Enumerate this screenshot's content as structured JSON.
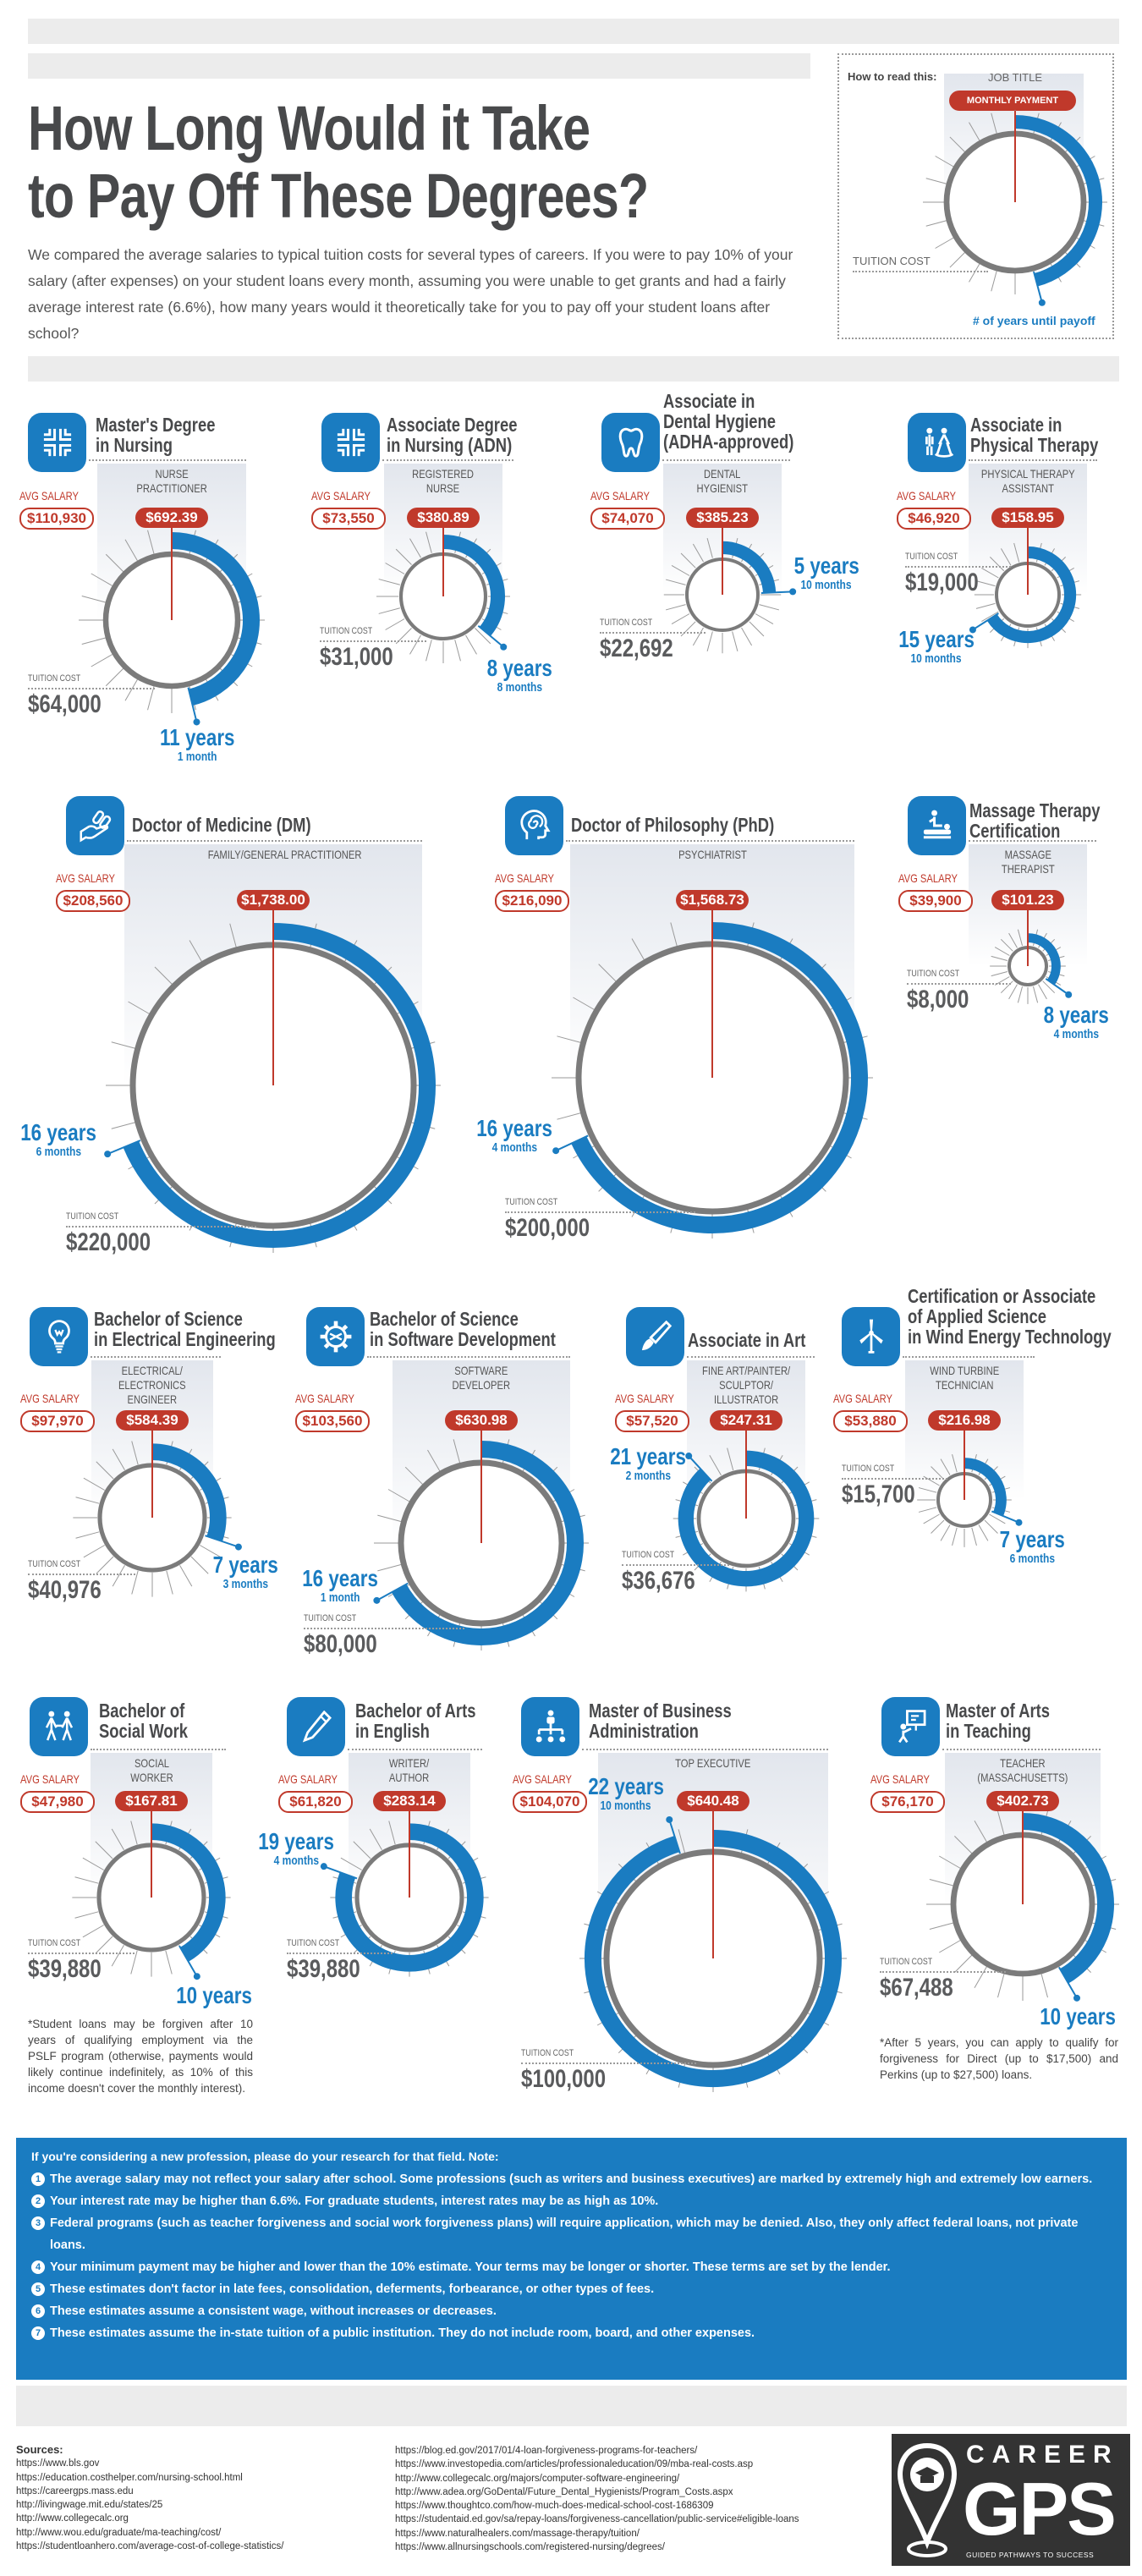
{
  "header": {
    "title_line1": "How Long Would it Take",
    "title_line2": "to Pay Off These Degrees?",
    "intro": "We compared the average salaries to typical tuition costs for several types of careers. If you were to pay 10% of your salary (after expenses) on your student loans every month, assuming you were unable to get grants and had a fairly average interest rate (6.6%), how many years would it theoretically take for you to pay off your student loans after school?"
  },
  "legend": {
    "heading": "How to read this:",
    "job_title": "JOB TITLE",
    "monthly_payment": "MONTHLY PAYMENT",
    "tuition_cost": "TUITION COST",
    "years_until_payoff": "# of years until payoff"
  },
  "labels": {
    "avg_salary": "AVG SALARY",
    "tuition_cost": "TUITION COST"
  },
  "colors": {
    "blue": "#1a7cc1",
    "red": "#c0392b",
    "ring": "#7b7b7b"
  },
  "cards": [
    {
      "icon": "nursing-cross-icon",
      "title": "Master's Degree\nin Nursing",
      "job": "NURSE\nPRACTITIONER",
      "avg_salary": "$110,930",
      "monthly_payment": "$692.39",
      "tuition": "$64,000",
      "tuition_value": 64000,
      "years_label": "11 years",
      "months_label": "1 month",
      "years": 11,
      "months": 1
    },
    {
      "icon": "nursing-cross-icon",
      "title": "Associate Degree\nin Nursing (ADN)",
      "job": "REGISTERED\nNURSE",
      "avg_salary": "$73,550",
      "monthly_payment": "$380.89",
      "tuition": "$31,000",
      "tuition_value": 31000,
      "years_label": "8 years",
      "months_label": "8 months",
      "years": 8,
      "months": 8
    },
    {
      "icon": "tooth-icon",
      "title": "Associate in\nDental Hygiene\n(ADHA-approved)",
      "job": "DENTAL\nHYGIENIST",
      "avg_salary": "$74,070",
      "monthly_payment": "$385.23",
      "tuition": "$22,692",
      "tuition_value": 22692,
      "years_label": "5 years",
      "months_label": "10 months",
      "years": 5,
      "months": 10
    },
    {
      "icon": "physical-therapy-icon",
      "title": "Associate in\nPhysical Therapy",
      "job": "PHYSICAL THERAPY\nASSISTANT",
      "avg_salary": "$46,920",
      "monthly_payment": "$158.95",
      "tuition": "$19,000",
      "tuition_value": 19000,
      "years_label": "15 years",
      "months_label": "10 months",
      "years": 15,
      "months": 10
    },
    {
      "icon": "hand-pills-icon",
      "title": "Doctor of Medicine (DM)",
      "job": "FAMILY/GENERAL PRACTITIONER",
      "avg_salary": "$208,560",
      "monthly_payment": "$1,738.00",
      "tuition": "$220,000",
      "tuition_value": 220000,
      "years_label": "16 years",
      "months_label": "6 months",
      "years": 16,
      "months": 6
    },
    {
      "icon": "head-spiral-icon",
      "title": "Doctor of Philosophy (PhD)",
      "job": "PSYCHIATRIST",
      "avg_salary": "$216,090",
      "monthly_payment": "$1,568.73",
      "tuition": "$200,000",
      "tuition_value": 200000,
      "years_label": "16 years",
      "months_label": "4 months",
      "years": 16,
      "months": 4
    },
    {
      "icon": "massage-icon",
      "title": "Massage Therapy\nCertification",
      "job": "MASSAGE\nTHERAPIST",
      "avg_salary": "$39,900",
      "monthly_payment": "$101.23",
      "tuition": "$8,000",
      "tuition_value": 8000,
      "years_label": "8 years",
      "months_label": "4 months",
      "years": 8,
      "months": 4
    },
    {
      "icon": "lightbulb-icon",
      "title": "Bachelor of Science\nin Electrical Engineering",
      "job": "ELECTRICAL/\nELECTRONICS\nENGINEER",
      "avg_salary": "$97,970",
      "monthly_payment": "$584.39",
      "tuition": "$40,976",
      "tuition_value": 40976,
      "years_label": "7 years",
      "months_label": "3 months",
      "years": 7,
      "months": 3
    },
    {
      "icon": "gear-icon",
      "title": "Bachelor of Science\nin Software Development",
      "job": "SOFTWARE\nDEVELOPER",
      "avg_salary": "$103,560",
      "monthly_payment": "$630.98",
      "tuition": "$80,000",
      "tuition_value": 80000,
      "years_label": "16 years",
      "months_label": "1 month",
      "years": 16,
      "months": 1
    },
    {
      "icon": "paintbrush-icon",
      "title": "Associate in Art",
      "job": "FINE ART/PAINTER/\nSCULPTOR/\nILLUSTRATOR",
      "avg_salary": "$57,520",
      "monthly_payment": "$247.31",
      "tuition": "$36,676",
      "tuition_value": 36676,
      "years_label": "21 years",
      "months_label": "2 months",
      "years": 21,
      "months": 2
    },
    {
      "icon": "wind-turbine-icon",
      "title": "Certification or Associate\nof Applied Science\nin Wind Energy Technology",
      "job": "WIND TURBINE\nTECHNICIAN",
      "avg_salary": "$53,880",
      "monthly_payment": "$216.98",
      "tuition": "$15,700",
      "tuition_value": 15700,
      "years_label": "7 years",
      "months_label": "6 months",
      "years": 7,
      "months": 6
    },
    {
      "icon": "people-icon",
      "title": "Bachelor of\nSocial Work",
      "job": "SOCIAL\nWORKER",
      "avg_salary": "$47,980",
      "monthly_payment": "$167.81",
      "tuition": "$39,880",
      "tuition_value": 39880,
      "years_label": "10 years",
      "months_label": "",
      "years": 10,
      "months": 0,
      "note": "*Student loans may be forgiven after 10 years of qualifying employment via the PSLF program (otherwise, payments would likely continue indefinitely, as 10% of this income doesn't cover the monthly interest)."
    },
    {
      "icon": "pen-icon",
      "title": "Bachelor of Arts\nin English",
      "job": "WRITER/\nAUTHOR",
      "avg_salary": "$61,820",
      "monthly_payment": "$283.14",
      "tuition": "$39,880",
      "tuition_value": 39880,
      "years_label": "19 years",
      "months_label": "4 months",
      "years": 19,
      "months": 4
    },
    {
      "icon": "org-chart-icon",
      "title": "Master of Business\nAdministration",
      "job": "TOP EXECUTIVE",
      "avg_salary": "$104,070",
      "monthly_payment": "$640.48",
      "tuition": "$100,000",
      "tuition_value": 100000,
      "years_label": "22 years",
      "months_label": "10 months",
      "years": 22,
      "months": 10
    },
    {
      "icon": "teacher-board-icon",
      "title": "Master of Arts\nin Teaching",
      "job": "TEACHER\n(MASSACHUSETTS)",
      "avg_salary": "$76,170",
      "monthly_payment": "$402.73",
      "tuition": "$67,488",
      "tuition_value": 67488,
      "years_label": "10 years",
      "months_label": "",
      "years": 10,
      "months": 0,
      "note": "*After 5 years, you can apply to qualify for forgiveness for Direct (up to $17,500) and Perkins (up to $27,500) loans."
    }
  ],
  "notes": {
    "heading": "If you're considering a new profession, please do your research for that field. Note:",
    "items": [
      "The average salary may not reflect your salary after school. Some professions (such as writers and business executives) are marked by extremely high and extremely low earners.",
      "Your interest rate may be higher than 6.6%. For graduate students, interest rates may be as high as 10%.",
      "Federal programs (such as teacher forgiveness and social work forgiveness plans) will require application, which may be denied. Also, they only affect federal loans, not private loans.",
      "Your minimum payment may be higher and lower than the 10% estimate. Your terms may be longer or shorter. These terms are set by the lender.",
      "These estimates don't factor in late fees, consolidation, deferments, forbearance, or other types of fees.",
      "These estimates assume a consistent wage, without increases or decreases.",
      "These estimates assume the in-state tuition of a public institution. They do not include room, board, and other expenses."
    ]
  },
  "sources": {
    "heading": "Sources:",
    "col1": [
      "https://www.bls.gov",
      "https://education.costhelper.com/nursing-school.html",
      "https://careergps.mass.edu",
      "http://livingwage.mit.edu/states/25",
      "http://www.collegecalc.org",
      "http://www.wou.edu/graduate/ma-teaching/cost/",
      "https://studentloanhero.com/average-cost-of-college-statistics/"
    ],
    "col2": [
      "https://blog.ed.gov/2017/01/4-loan-forgiveness-programs-for-teachers/",
      "https://www.investopedia.com/articles/professionaleducation/09/mba-real-costs.asp",
      "http://www.collegecalc.org/majors/computer-software-engineering/",
      "http://www.adea.org/GoDental/Future_Dental_Hygienists/Program_Costs.aspx",
      "https://www.thoughtco.com/how-much-does-medical-school-cost-1686309",
      "https://studentaid.ed.gov/sa/repay-loans/forgiveness-cancellation/public-service#eligible-loans",
      "https://www.naturalhealers.com/massage-therapy/tuition/",
      "https://www.allnursingschools.com/registered-nursing/degrees/"
    ]
  },
  "logo": {
    "line1": "CAREER",
    "line2": "GPS",
    "tagline": "GUIDED PATHWAYS TO SUCCESS"
  }
}
